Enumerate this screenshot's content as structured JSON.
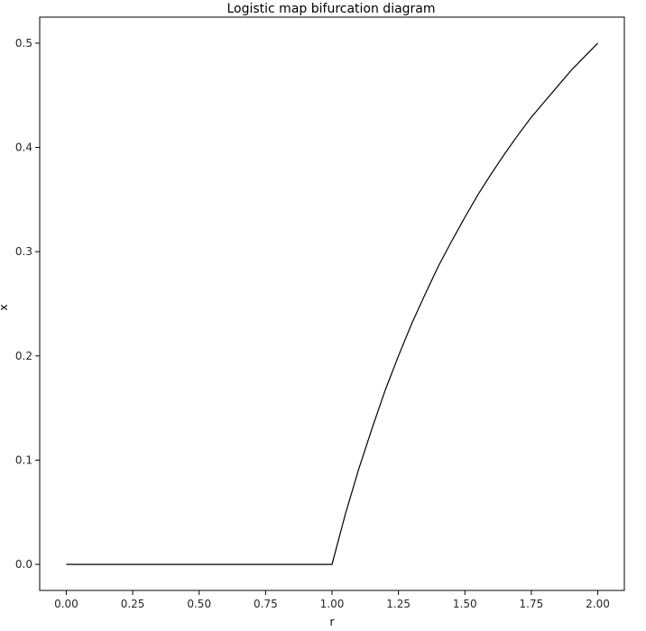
{
  "chart_data": {
    "type": "line",
    "title": "Logistic map bifurcation diagram",
    "xlabel": "r",
    "ylabel": "x",
    "xlim": [
      -0.1,
      2.1
    ],
    "ylim": [
      -0.025,
      0.525
    ],
    "xticks": [
      0.0,
      0.25,
      0.5,
      0.75,
      1.0,
      1.25,
      1.5,
      1.75,
      2.0
    ],
    "xtick_labels": [
      "0.00",
      "0.25",
      "0.50",
      "0.75",
      "1.00",
      "1.25",
      "1.50",
      "1.75",
      "2.00"
    ],
    "yticks": [
      0.0,
      0.1,
      0.2,
      0.3,
      0.4,
      0.5
    ],
    "ytick_labels": [
      "0.0",
      "0.1",
      "0.2",
      "0.3",
      "0.4",
      "0.5"
    ],
    "grid": false,
    "series": [
      {
        "color": "#000000",
        "x": [
          0.0,
          0.25,
          0.5,
          0.75,
          1.0,
          1.05,
          1.1,
          1.15,
          1.2,
          1.25,
          1.3,
          1.35,
          1.4,
          1.45,
          1.5,
          1.55,
          1.6,
          1.65,
          1.7,
          1.75,
          1.8,
          1.85,
          1.9,
          1.95,
          2.0
        ],
        "y": [
          0.0,
          0.0,
          0.0,
          0.0,
          0.0,
          0.048,
          0.091,
          0.13,
          0.167,
          0.2,
          0.231,
          0.259,
          0.286,
          0.31,
          0.333,
          0.355,
          0.375,
          0.394,
          0.412,
          0.429,
          0.444,
          0.459,
          0.474,
          0.487,
          0.5
        ]
      }
    ]
  }
}
